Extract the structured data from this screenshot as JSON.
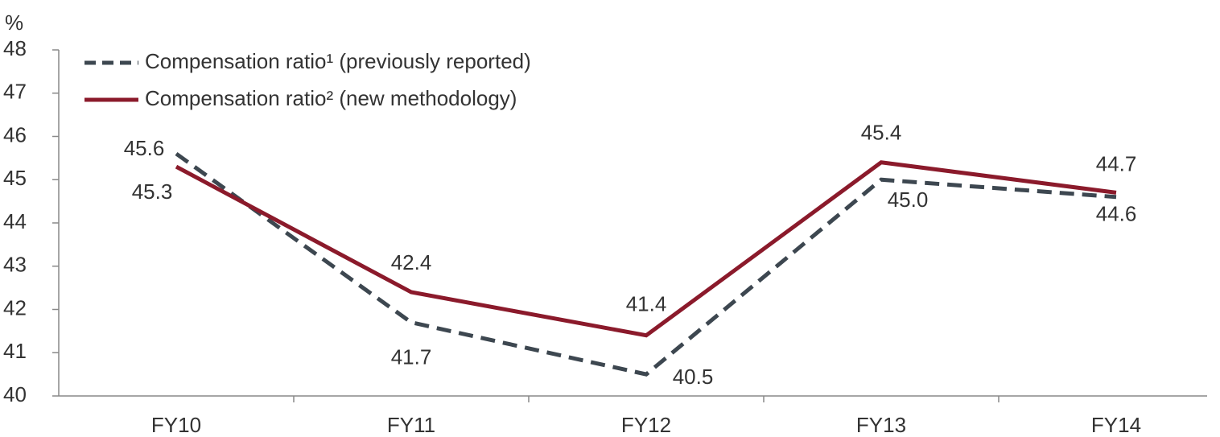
{
  "chart_data": {
    "type": "line",
    "y_axis_label": "%",
    "categories": [
      "FY10",
      "FY11",
      "FY12",
      "FY13",
      "FY14"
    ],
    "series": [
      {
        "name": "Compensation ratio¹ (previously reported)",
        "color": "#3d4750",
        "dashed": true,
        "values": [
          45.6,
          41.7,
          40.5,
          45.0,
          44.6
        ],
        "value_labels": [
          "45.6",
          "41.7",
          "40.5",
          "45.0",
          "44.6"
        ]
      },
      {
        "name": "Compensation ratio² (new methodology)",
        "color": "#8b1a2b",
        "dashed": false,
        "values": [
          45.3,
          42.4,
          41.4,
          45.4,
          44.7
        ],
        "value_labels": [
          "45.3",
          "42.4",
          "41.4",
          "45.4",
          "44.7"
        ]
      }
    ],
    "ylim": [
      40,
      48
    ],
    "yticks": [
      40,
      41,
      42,
      43,
      44,
      45,
      46,
      47,
      48
    ],
    "grid": false,
    "legend": "top-left"
  }
}
